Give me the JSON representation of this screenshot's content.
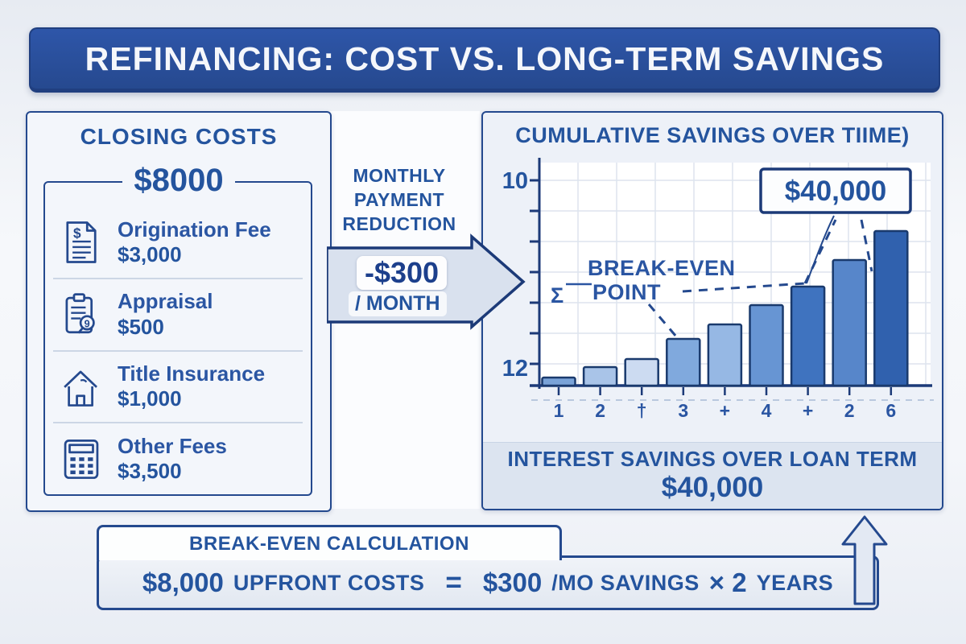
{
  "banner": {
    "title": "REFINANCING: COST VS. LONG-TERM SAVINGS"
  },
  "closing_costs": {
    "title": "CLOSING COSTS",
    "total": "$8000",
    "items": [
      {
        "icon": "document-dollar-icon",
        "label": "Origination Fee",
        "amount": "$3,000"
      },
      {
        "icon": "appraisal-clipboard-icon",
        "label": "Appraisal",
        "amount": "$500"
      },
      {
        "icon": "house-icon",
        "label": "Title Insurance",
        "amount": "$1,000"
      },
      {
        "icon": "calculator-icon",
        "label": "Other Fees",
        "amount": "$3,500"
      }
    ]
  },
  "monthly_reduction": {
    "label": "MONTHLY PAYMENT REDUCTION",
    "amount": "-$300",
    "per": "/ MONTH"
  },
  "savings_panel": {
    "title": "CUMULATIVE SAVINGS OVER TIIME)",
    "callout": "$40,000",
    "break_even_line1": "BREAK-EVEN",
    "break_even_line2": "POINT",
    "sigma_glyph": "Σ",
    "footer_label": "INTEREST SAVINGS OVER LOAN TERM",
    "footer_amount": "$40,000"
  },
  "chart_data": {
    "type": "bar",
    "title": "CUMULATIVE SAVINGS OVER TIIME)",
    "x_labels": [
      "1",
      "2",
      "†",
      "3",
      "+",
      "4",
      "+",
      "2",
      "6"
    ],
    "y_axis_labels": {
      "top": "10",
      "bottom": "12"
    },
    "values_relative": [
      10,
      23,
      33,
      58,
      76,
      100,
      123,
      156,
      192
    ],
    "values_usd_estimate": [
      2000,
      5000,
      7000,
      12000,
      16000,
      21000,
      26000,
      32500,
      40000
    ],
    "final_value_label": "$40,000",
    "annotation": "BREAK-EVEN POINT",
    "grid": true,
    "legend": false,
    "bar_colors": [
      "#7aa3d8",
      "#a9c4e8",
      "#ccdbf1",
      "#80a9dd",
      "#96b8e4",
      "#6795d3",
      "#3f73bf",
      "#5786ca",
      "#3061ae"
    ]
  },
  "break_even_calc": {
    "tab_title": "BREAK-EVEN CALCULATION",
    "left_big": "$8,000",
    "left_small": "UPFRONT COSTS",
    "equals": "=",
    "right_big": "$300",
    "right_small": "/MO SAVINGS",
    "times": "× 2",
    "years": "YEARS"
  },
  "colors": {
    "banner_blue": "#2a52a2",
    "text_blue": "#24549e",
    "panel_border": "#24498e",
    "panel_bg": "#f3f6fb",
    "arrow_fill": "#d9e1ee",
    "bar_outline": "#1a3a6d",
    "footer_band": "#dce4f0"
  }
}
